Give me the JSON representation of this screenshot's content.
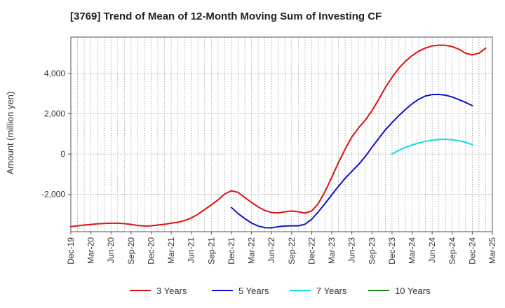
{
  "chart_data": {
    "type": "line",
    "title": "[3769]  Trend of Mean of 12-Month Moving Sum of Investing CF",
    "ylabel": "Amount (million yen)",
    "xlabel": "",
    "ylim": [
      -3850,
      5800
    ],
    "yticks": [
      -2000,
      0,
      2000,
      4000
    ],
    "ytick_labels": [
      "-2,000",
      "0",
      "2,000",
      "4,000"
    ],
    "x_start": "2019-12",
    "x_end": "2025-03",
    "xtick_labels": [
      "Dec-19",
      "Mar-20",
      "Jun-20",
      "Sep-20",
      "Dec-20",
      "Mar-21",
      "Jun-21",
      "Sep-21",
      "Dec-21",
      "Mar-22",
      "Jun-22",
      "Sep-22",
      "Dec-22",
      "Mar-23",
      "Jun-23",
      "Sep-23",
      "Dec-23",
      "Mar-24",
      "Jun-24",
      "Sep-24",
      "Dec-24",
      "Mar-25"
    ],
    "grid": true,
    "legend_position": "bottom",
    "series": [
      {
        "name": "3 Years",
        "color": "#dd1111",
        "start_index": 0,
        "values": [
          -3600,
          -3560,
          -3520,
          -3490,
          -3460,
          -3440,
          -3430,
          -3430,
          -3450,
          -3490,
          -3540,
          -3570,
          -3560,
          -3520,
          -3480,
          -3430,
          -3380,
          -3300,
          -3170,
          -2980,
          -2750,
          -2520,
          -2270,
          -1980,
          -1820,
          -1900,
          -2150,
          -2400,
          -2620,
          -2800,
          -2900,
          -2920,
          -2860,
          -2820,
          -2860,
          -2930,
          -2820,
          -2450,
          -1850,
          -1150,
          -420,
          250,
          850,
          1300,
          1680,
          2150,
          2700,
          3300,
          3800,
          4250,
          4600,
          4880,
          5100,
          5260,
          5360,
          5400,
          5390,
          5330,
          5200,
          5000,
          4920,
          5000,
          5250
        ]
      },
      {
        "name": "5 Years",
        "color": "#1111cc",
        "start_index": 24,
        "values": [
          -2650,
          -2950,
          -3200,
          -3420,
          -3570,
          -3650,
          -3660,
          -3600,
          -3570,
          -3560,
          -3560,
          -3480,
          -3230,
          -2860,
          -2450,
          -2020,
          -1600,
          -1200,
          -860,
          -520,
          -120,
          330,
          770,
          1200,
          1560,
          1900,
          2210,
          2490,
          2720,
          2880,
          2950,
          2960,
          2920,
          2830,
          2700,
          2560,
          2400
        ]
      },
      {
        "name": "7 Years",
        "color": "#11dddd",
        "start_index": 48,
        "values": [
          0,
          180,
          330,
          450,
          550,
          630,
          690,
          720,
          730,
          710,
          660,
          580,
          470
        ]
      },
      {
        "name": "10 Years",
        "color": "#118811",
        "start_index": 0,
        "values": []
      }
    ]
  }
}
